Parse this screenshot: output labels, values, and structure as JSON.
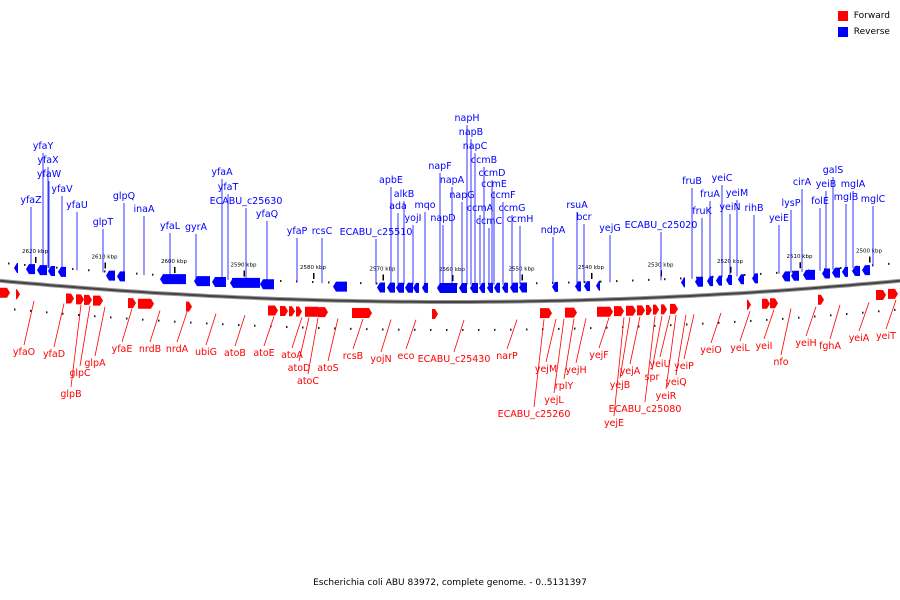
{
  "legend": {
    "forward": {
      "label": "Forward",
      "color": "#ff0000"
    },
    "reverse": {
      "label": "Reverse",
      "color": "#0000ff"
    }
  },
  "caption": "Escherichia coli ABU 83972, complete genome. - 0..5131397",
  "scale": {
    "kbp_left": 2623,
    "kbp_right": 2496,
    "ticks": [
      "2620 kbp",
      "2610 kbp",
      "2600 kbp",
      "2590 kbp",
      "2580 kbp",
      "2570 kbp",
      "2560 kbp",
      "2550 kbp",
      "2540 kbp",
      "2530 kbp",
      "2520 kbp",
      "2510 kbp",
      "2500 kbp"
    ]
  },
  "reverse_genes": [
    "yfaZ",
    "yfaY",
    "yfaX",
    "yfaW",
    "yfaV",
    "yfaU",
    "glpT",
    "glpQ",
    "inaA",
    "yfaL",
    "gyrA",
    "yfaA",
    "yfaT",
    "ECABU_c25630",
    "yfaQ",
    "yfaP",
    "rcsC",
    "ECABU_c25510",
    "apbE",
    "alkB",
    "ada",
    "yojI",
    "mqo",
    "napF",
    "napD",
    "napA",
    "napG",
    "napH",
    "napB",
    "napC",
    "ccmA",
    "ccmB",
    "ccmC",
    "ccmD",
    "ccmE",
    "ccmF",
    "ccmG",
    "ccmH",
    "ndpA",
    "rsuA",
    "bcr",
    "yejG",
    "ECABU_c25020",
    "fruB",
    "fruK",
    "fruA",
    "yeiC",
    "yeiN",
    "yeiM",
    "rihB",
    "yeiE",
    "lysP",
    "cirA",
    "folE",
    "yeiB",
    "galS",
    "mglB",
    "mglA",
    "mglC"
  ],
  "forward_genes": [
    "yfaO",
    "yfaD",
    "glpC",
    "glpB",
    "glpA",
    "yfaE",
    "nrdB",
    "nrdA",
    "ubiG",
    "atoB",
    "atoE",
    "atoA",
    "atoD",
    "atoC",
    "atoS",
    "rcsB",
    "yojN",
    "eco",
    "ECABU_c25430",
    "narP",
    "ECABU_c25260",
    "yejM",
    "yejL",
    "rplY",
    "yejH",
    "yejF",
    "yejE",
    "yejB",
    "yejA",
    "ECABU_c25080",
    "spr",
    "yeiU",
    "yeiR",
    "yeiQ",
    "yeiP",
    "yeiO",
    "yeiL",
    "yeiI",
    "nfo",
    "yeiH",
    "fghA",
    "yeiA",
    "yeiT"
  ]
}
